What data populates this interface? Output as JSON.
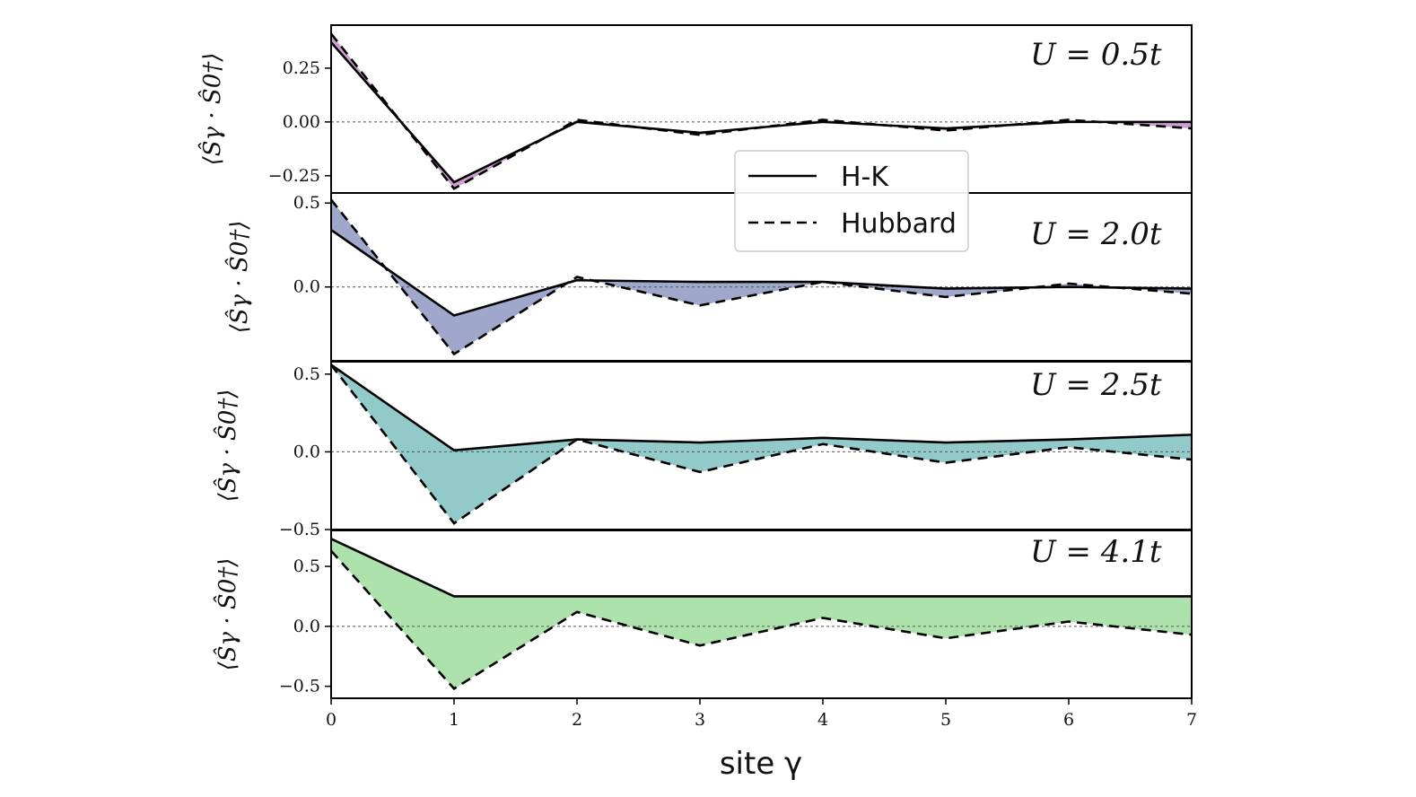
{
  "chart_data": {
    "type": "line",
    "x": [
      0,
      1,
      2,
      3,
      4,
      5,
      6,
      7
    ],
    "xlabel": "site γ",
    "xticks": [
      "0",
      "1",
      "2",
      "3",
      "4",
      "5",
      "6",
      "7"
    ],
    "xlim": [
      0,
      7
    ],
    "legend": {
      "placement": "center-right",
      "entries": [
        {
          "label": "H-K",
          "style": "solid"
        },
        {
          "label": "Hubbard",
          "style": "dashed"
        }
      ]
    },
    "panels": [
      {
        "annotation": "U = 0.5t",
        "ylabel": "⟨Ŝγ · Ŝ0†⟩",
        "ylim": [
          -0.33,
          0.45
        ],
        "yticks": [
          0.25,
          0.0,
          -0.25
        ],
        "ytick_labels": [
          "0.25",
          "0.00",
          "−0.25"
        ],
        "fill_color": "#c58fc9",
        "series": [
          {
            "name": "H-K",
            "values": [
              0.37,
              -0.28,
              0.0,
              -0.05,
              0.0,
              -0.03,
              0.0,
              0.0
            ]
          },
          {
            "name": "Hubbard",
            "values": [
              0.41,
              -0.31,
              0.01,
              -0.06,
              0.01,
              -0.04,
              0.01,
              -0.03
            ]
          }
        ]
      },
      {
        "annotation": "U = 2.0t",
        "ylabel": "⟨Ŝγ · Ŝ0†⟩",
        "ylim": [
          -0.44,
          0.56
        ],
        "yticks": [
          0.5,
          0.0
        ],
        "ytick_labels": [
          "0.5",
          "0.0"
        ],
        "fill_color": "#8e99c2",
        "series": [
          {
            "name": "H-K",
            "values": [
              0.34,
              -0.17,
              0.04,
              0.03,
              0.03,
              -0.01,
              0.0,
              -0.01
            ]
          },
          {
            "name": "Hubbard",
            "values": [
              0.52,
              -0.4,
              0.06,
              -0.11,
              0.03,
              -0.06,
              0.02,
              -0.04
            ]
          }
        ]
      },
      {
        "annotation": "U = 2.5t",
        "ylabel": "⟨Ŝγ · Ŝ0†⟩",
        "ylim": [
          -0.5,
          0.58
        ],
        "yticks": [
          0.5,
          0.0,
          -0.5
        ],
        "ytick_labels": [
          "0.5",
          "0.0",
          "−0.5"
        ],
        "fill_color": "#7fc0c0",
        "series": [
          {
            "name": "H-K",
            "values": [
              0.56,
              0.01,
              0.08,
              0.06,
              0.09,
              0.06,
              0.08,
              0.11
            ]
          },
          {
            "name": "Hubbard",
            "values": [
              0.56,
              -0.46,
              0.08,
              -0.13,
              0.05,
              -0.07,
              0.03,
              -0.05
            ]
          }
        ]
      },
      {
        "annotation": "U = 4.1t",
        "ylabel": "⟨Ŝγ · Ŝ0†⟩",
        "ylim": [
          -0.6,
          0.8
        ],
        "yticks": [
          0.5,
          0.0,
          -0.5
        ],
        "ytick_labels": [
          "0.5",
          "0.0",
          "−0.5"
        ],
        "fill_color": "#9fdd9f",
        "series": [
          {
            "name": "H-K",
            "values": [
              0.73,
              0.25,
              0.25,
              0.25,
              0.25,
              0.25,
              0.25,
              0.25
            ]
          },
          {
            "name": "Hubbard",
            "values": [
              0.63,
              -0.52,
              0.12,
              -0.16,
              0.07,
              -0.1,
              0.04,
              -0.07
            ]
          }
        ]
      }
    ]
  }
}
